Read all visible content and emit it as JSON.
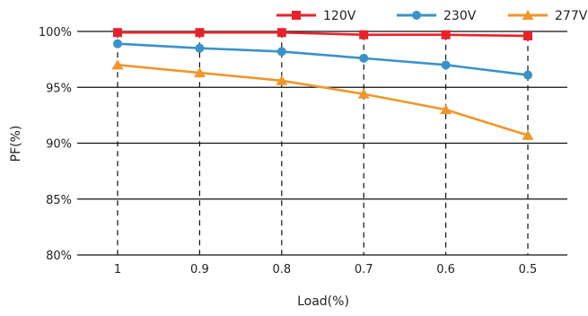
{
  "chart_data": {
    "type": "line",
    "title": "",
    "xlabel": "Load(%)",
    "ylabel": "PF(%)",
    "categories": [
      "1",
      "0.9",
      "0.8",
      "0.7",
      "0.6",
      "0.5"
    ],
    "ylim": [
      80,
      100
    ],
    "yticks": [
      "100%",
      "95%",
      "90%",
      "85%",
      "80%"
    ],
    "ytick_values": [
      100,
      95,
      90,
      85,
      80
    ],
    "grid": "horizontal solid lines, vertical dashed drop lines",
    "legend_position": "top-right",
    "series": [
      {
        "name": "120V",
        "color": "#e8222a",
        "marker": "square",
        "values": [
          99.9,
          99.9,
          99.9,
          99.7,
          99.7,
          99.6
        ]
      },
      {
        "name": "230V",
        "color": "#3a93c8",
        "marker": "circle",
        "values": [
          98.9,
          98.5,
          98.2,
          97.6,
          97.0,
          96.1
        ]
      },
      {
        "name": "277V",
        "color": "#f0962c",
        "marker": "triangle",
        "values": [
          97.0,
          96.3,
          95.6,
          94.4,
          93.0,
          90.7
        ]
      }
    ]
  }
}
